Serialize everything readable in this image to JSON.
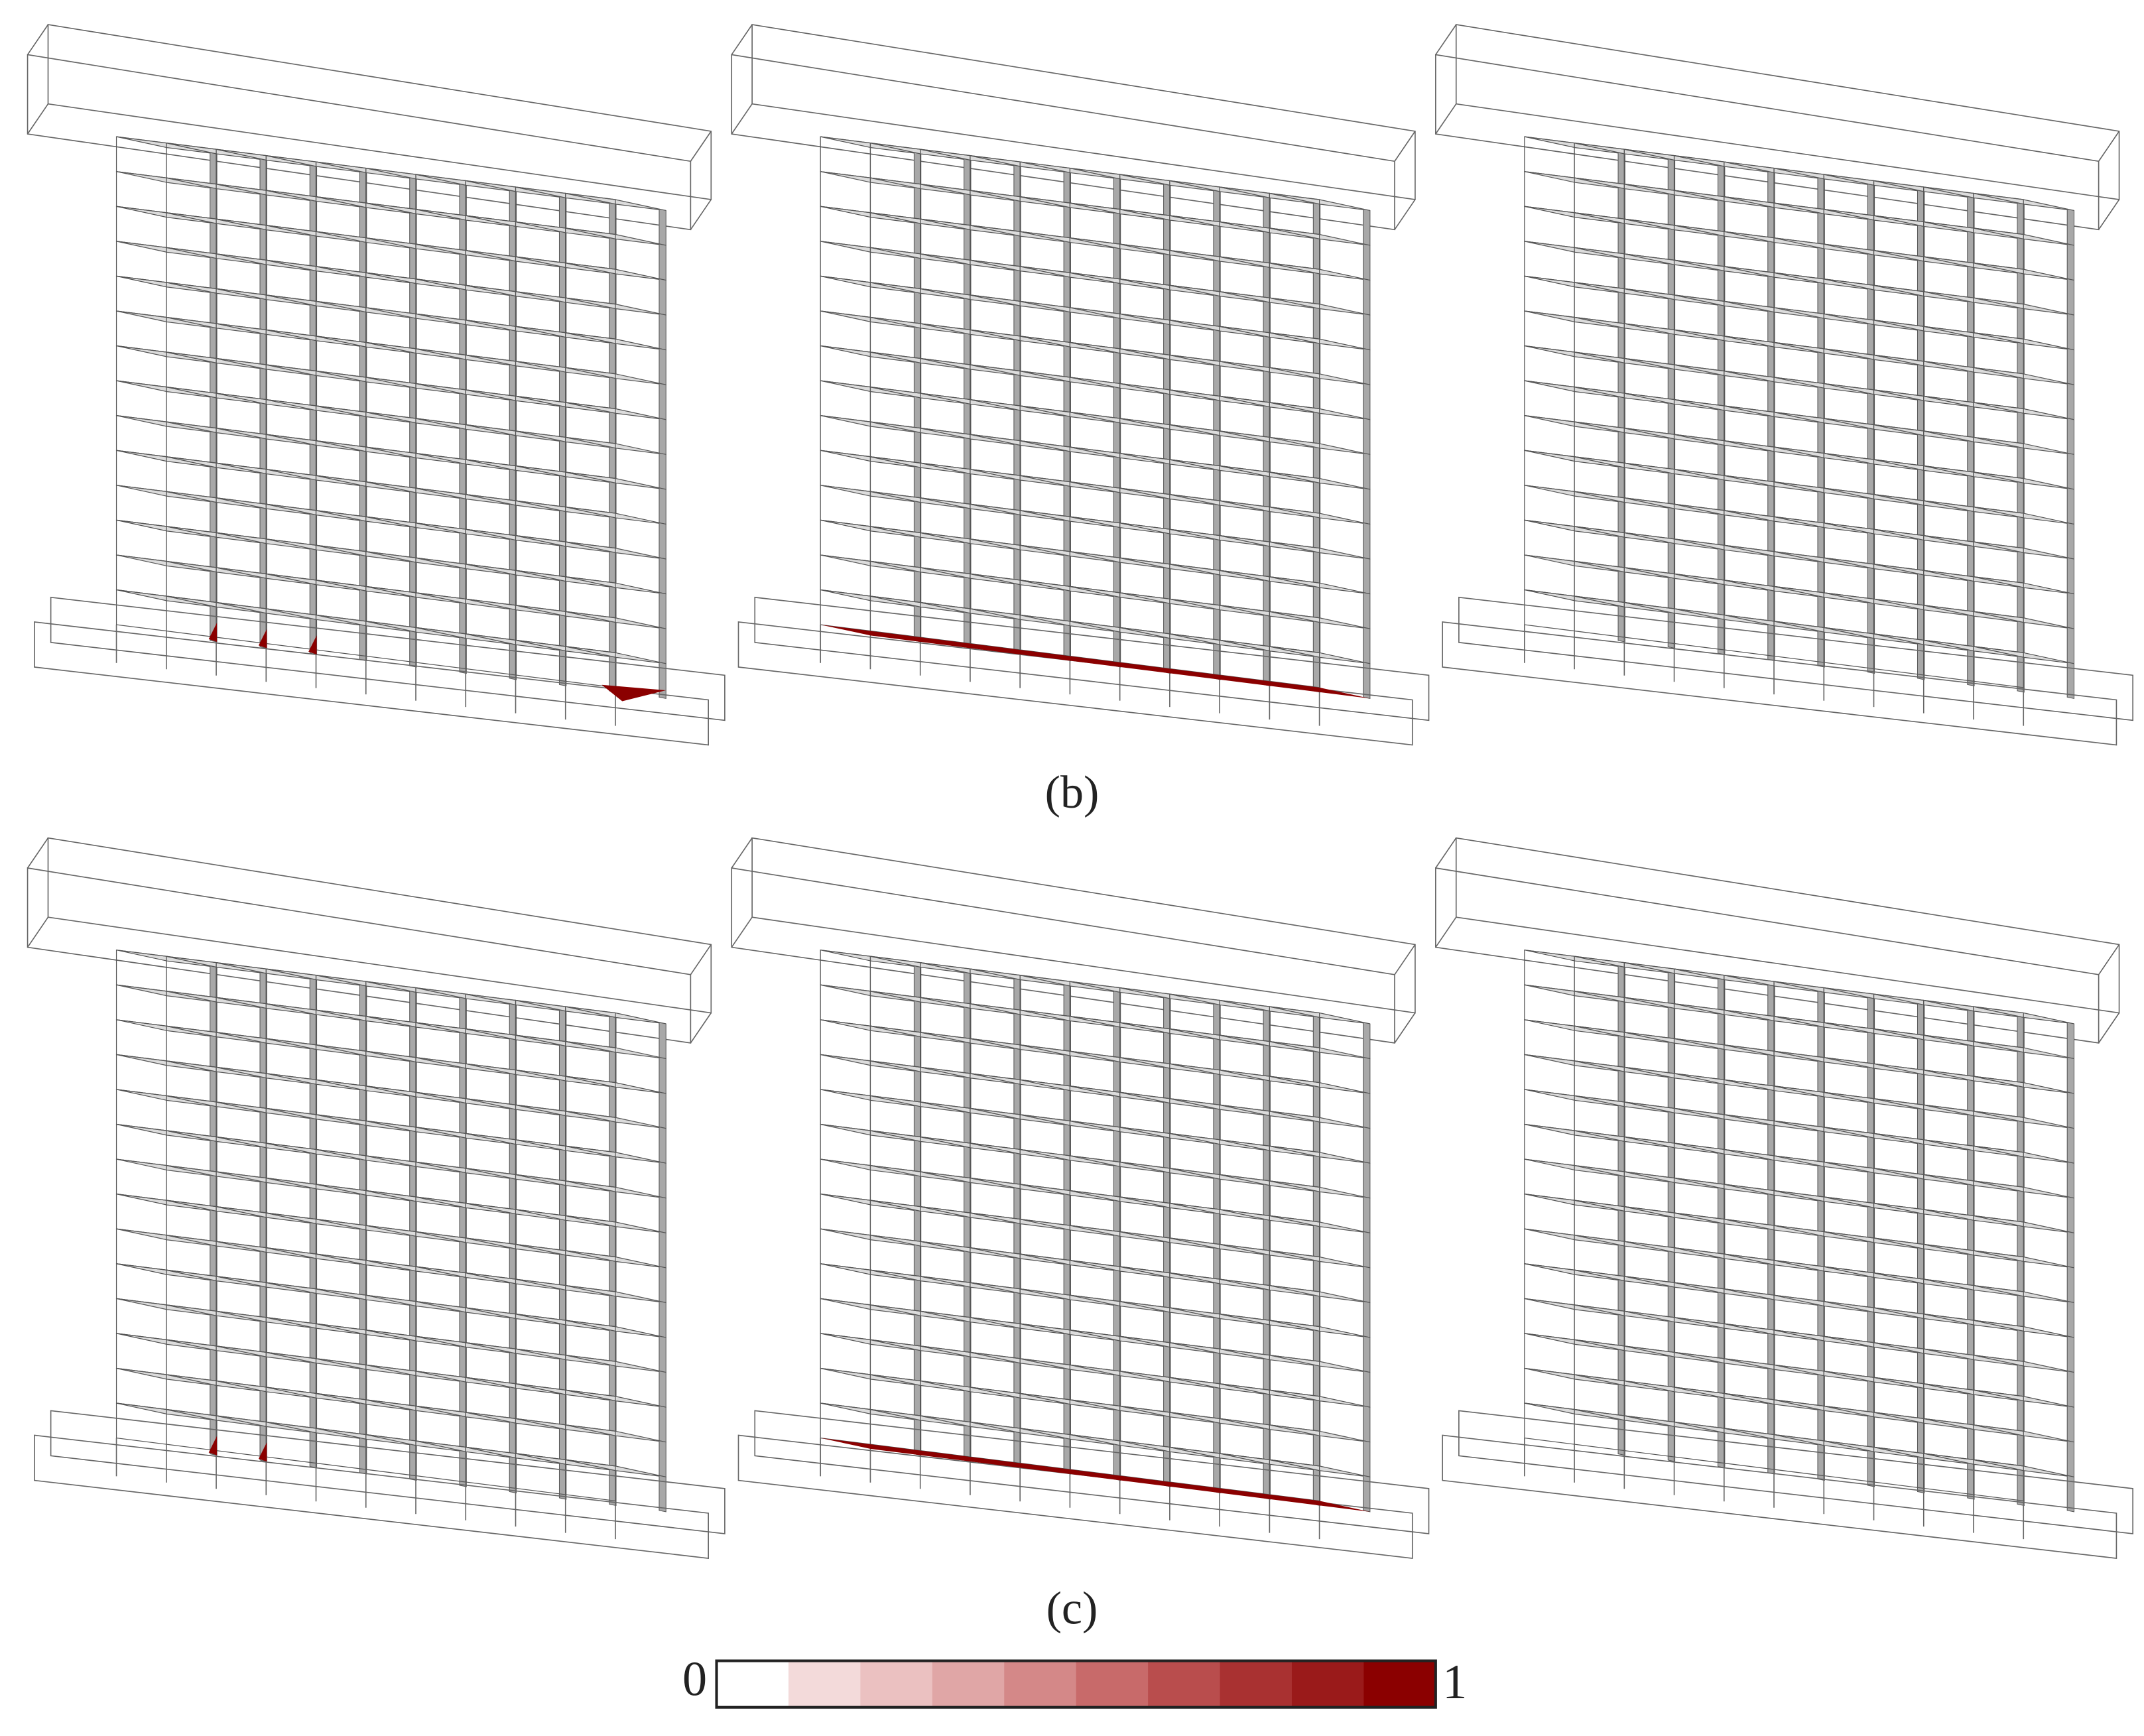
{
  "panels": [
    {
      "label": "(b)"
    },
    {
      "label": "(c)"
    }
  ],
  "colorbar": {
    "min": 0,
    "max": 1,
    "colors": [
      "#ffffff",
      "#f3dada",
      "#ebc1c1",
      "#e0a6a6",
      "#d48888",
      "#c86a6a",
      "#b94d4d",
      "#a93131",
      "#9a1a1a",
      "#8b0000"
    ]
  }
}
